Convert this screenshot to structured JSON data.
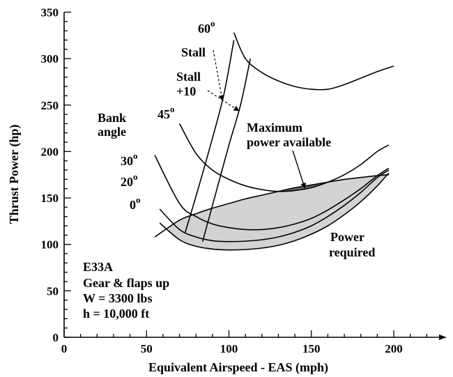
{
  "chart_data": {
    "type": "line",
    "xlabel": "Equivalent Airspeed - EAS (mph)",
    "ylabel": "Thrust Power (hp)",
    "xlim": [
      0,
      225
    ],
    "ylim": [
      0,
      350
    ],
    "xticks": [
      "0",
      "50",
      "100",
      "150",
      "200"
    ],
    "yticks": [
      "0",
      "50",
      "100",
      "150",
      "200",
      "250",
      "300",
      "350"
    ],
    "grid": false,
    "series": [
      {
        "name": "0°",
        "role": "power-required",
        "x": [
          58,
          70,
          80,
          90,
          100,
          110,
          120,
          130,
          140,
          150,
          160,
          170,
          180,
          190,
          197
        ],
        "y": [
          123,
          105,
          98,
          95,
          94,
          94.5,
          96,
          99,
          104,
          111,
          120,
          132,
          146,
          163,
          177
        ]
      },
      {
        "name": "20°",
        "role": "power-required",
        "x": [
          58,
          70,
          80,
          90,
          100,
          110,
          120,
          130,
          140,
          150,
          160,
          170,
          180,
          190,
          197
        ],
        "y": [
          138,
          116,
          108,
          104,
          103,
          103.5,
          105,
          108,
          113,
          120,
          130,
          142,
          156,
          172,
          180
        ]
      },
      {
        "name": "30°",
        "role": "power-required",
        "x": [
          55,
          70,
          80,
          90,
          100,
          110,
          120,
          130,
          140,
          150,
          160,
          170,
          180,
          190,
          197
        ],
        "y": [
          196,
          144,
          130,
          122,
          118,
          116,
          116,
          118,
          122,
          128,
          137,
          148,
          160,
          174,
          182
        ]
      },
      {
        "name": "45°",
        "role": "power-required",
        "x": [
          70,
          80,
          90,
          100,
          110,
          120,
          130,
          140,
          150,
          160,
          170,
          180,
          190,
          197
        ],
        "y": [
          230,
          198,
          180,
          170,
          163,
          159,
          157,
          158,
          161,
          167,
          175,
          186,
          200,
          207
        ]
      },
      {
        "name": "60°",
        "role": "power-required",
        "x": [
          103,
          110,
          120,
          130,
          140,
          150,
          160,
          170,
          180,
          190,
          200
        ],
        "y": [
          328,
          300,
          285,
          276,
          270,
          267,
          267,
          272,
          279,
          286,
          292
        ]
      },
      {
        "name": "Maximum power available",
        "role": "power-available",
        "x": [
          55,
          70,
          80,
          90,
          100,
          110,
          120,
          130,
          140,
          150,
          160,
          170,
          180,
          190,
          197
        ],
        "y": [
          108,
          126,
          133,
          139,
          144,
          149,
          153,
          157,
          161,
          164,
          167,
          170,
          172,
          174,
          175
        ]
      },
      {
        "name": "Stall",
        "role": "stall-boundary",
        "x": [
          73.5,
          81,
          89,
          97,
          103
        ],
        "y": [
          113,
          158,
          208,
          262,
          320
        ]
      },
      {
        "name": "Stall +10",
        "role": "stall-boundary",
        "x": [
          84,
          92,
          100,
          107,
          113
        ],
        "y": [
          103,
          155,
          207,
          250,
          300
        ]
      }
    ],
    "labels": {
      "bank_heading": "Bank angle",
      "bank_angles": [
        "0",
        "20",
        "30",
        "45",
        "60"
      ],
      "degree_mark": "o",
      "stall": "Stall",
      "stall_plus": "Stall +10",
      "power_available": "Maximum power available",
      "power_required": "Power required",
      "conditions": [
        "E33A",
        "Gear & flaps up",
        "W = 3300 lbs",
        "h = 10,000 ft"
      ]
    }
  },
  "text": {
    "xlabel": "Equivalent Airspeed - EAS (mph)",
    "ylabel": "Thrust Power (hp)",
    "bank1": "Bank",
    "bank2": "angle",
    "deg": "o",
    "a0": "0",
    "a20": "20",
    "a30": "30",
    "a45": "45",
    "a60": "60",
    "stall": "Stall",
    "stall10a": "Stall",
    "stall10b": "+10",
    "max1": "Maximum",
    "max2": "power available",
    "req1": "Power",
    "req2": "required",
    "c1": "E33A",
    "c2": "Gear & flaps up",
    "c3": "W = 3300 lbs",
    "c4": "h = 10,000 ft"
  }
}
